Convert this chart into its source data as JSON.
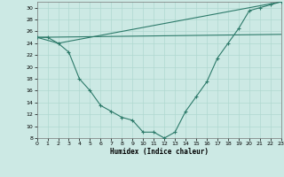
{
  "x_min": 0,
  "x_max": 23,
  "y_min": 8,
  "y_max": 31,
  "y_ticks": [
    8,
    10,
    12,
    14,
    16,
    18,
    20,
    22,
    24,
    26,
    28,
    30
  ],
  "x_ticks": [
    0,
    1,
    2,
    3,
    4,
    5,
    6,
    7,
    8,
    9,
    10,
    11,
    12,
    13,
    14,
    15,
    16,
    17,
    18,
    19,
    20,
    21,
    22,
    23
  ],
  "xlabel": "Humidex (Indice chaleur)",
  "bg_color": "#cce9e4",
  "line_color": "#2d7a6a",
  "grid_color": "#b0d8d0",
  "series1_x": [
    0,
    1,
    2,
    3,
    4,
    5,
    6,
    7,
    8,
    9,
    10,
    11,
    12,
    13,
    14,
    15,
    16,
    17,
    18,
    19,
    20,
    21,
    22,
    23
  ],
  "series1_y": [
    25.0,
    25.0,
    24.0,
    22.5,
    18.0,
    16.0,
    13.5,
    12.5,
    11.5,
    11.0,
    9.0,
    9.0,
    8.0,
    9.0,
    12.5,
    15.0,
    17.5,
    21.5,
    24.0,
    26.5,
    29.5,
    30.0,
    30.5,
    31.0
  ],
  "series2_x": [
    0,
    2,
    23
  ],
  "series2_y": [
    25.0,
    24.0,
    31.0
  ],
  "series3_x": [
    0,
    23
  ],
  "series3_y": [
    25.0,
    25.5
  ]
}
